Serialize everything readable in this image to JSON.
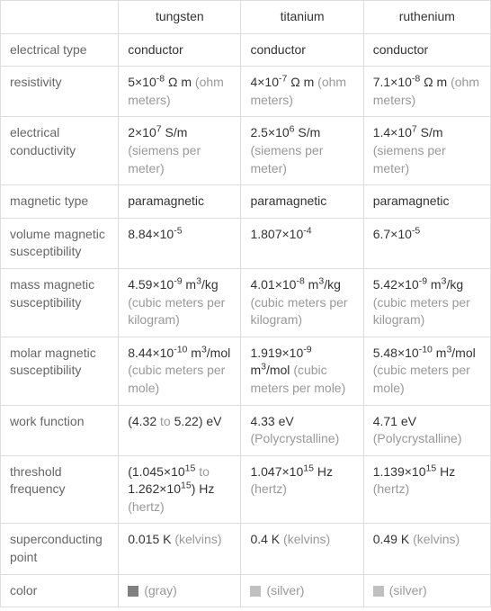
{
  "table": {
    "headers": [
      "",
      "tungsten",
      "titanium",
      "ruthenium"
    ],
    "rows": [
      {
        "label": "electrical type",
        "cells": [
          {
            "value": "conductor"
          },
          {
            "value": "conductor"
          },
          {
            "value": "conductor"
          }
        ]
      },
      {
        "label": "resistivity",
        "cells": [
          {
            "value_html": "5×10<sup>-8</sup> Ω m",
            "unit": "(ohm meters)"
          },
          {
            "value_html": "4×10<sup>-7</sup> Ω m",
            "unit": "(ohm meters)"
          },
          {
            "value_html": "7.1×10<sup>-8</sup> Ω m",
            "unit": "(ohm meters)"
          }
        ]
      },
      {
        "label": "electrical conductivity",
        "cells": [
          {
            "value_html": "2×10<sup>7</sup> S/m",
            "unit": "(siemens per meter)"
          },
          {
            "value_html": "2.5×10<sup>6</sup> S/m",
            "unit": "(siemens per meter)"
          },
          {
            "value_html": "1.4×10<sup>7</sup> S/m",
            "unit": "(siemens per meter)"
          }
        ]
      },
      {
        "label": "magnetic type",
        "cells": [
          {
            "value": "paramagnetic"
          },
          {
            "value": "paramagnetic"
          },
          {
            "value": "paramagnetic"
          }
        ]
      },
      {
        "label": "volume magnetic susceptibility",
        "cells": [
          {
            "value_html": "8.84×10<sup>-5</sup>"
          },
          {
            "value_html": "1.807×10<sup>-4</sup>"
          },
          {
            "value_html": "6.7×10<sup>-5</sup>"
          }
        ]
      },
      {
        "label": "mass magnetic susceptibility",
        "cells": [
          {
            "value_html": "4.59×10<sup>-9</sup> m<sup>3</sup>/kg",
            "unit": "(cubic meters per kilogram)"
          },
          {
            "value_html": "4.01×10<sup>-8</sup> m<sup>3</sup>/kg",
            "unit": "(cubic meters per kilogram)"
          },
          {
            "value_html": "5.42×10<sup>-9</sup> m<sup>3</sup>/kg",
            "unit": "(cubic meters per kilogram)"
          }
        ]
      },
      {
        "label": "molar magnetic susceptibility",
        "cells": [
          {
            "value_html": "8.44×10<sup>-10</sup> m<sup>3</sup>/mol",
            "unit": "(cubic meters per mole)"
          },
          {
            "value_html": "1.919×10<sup>-9</sup> m<sup>3</sup>/mol",
            "unit": "(cubic meters per mole)"
          },
          {
            "value_html": "5.48×10<sup>-10</sup> m<sup>3</sup>/mol",
            "unit": "(cubic meters per mole)"
          }
        ]
      },
      {
        "label": "work function",
        "cells": [
          {
            "value_html": "(4.32 <span class='unit-text'>to</span> 5.22) eV"
          },
          {
            "value": "4.33 eV",
            "unit": "(Polycrystalline)"
          },
          {
            "value": "4.71 eV",
            "unit": "(Polycrystalline)"
          }
        ]
      },
      {
        "label": "threshold frequency",
        "cells": [
          {
            "value_html": "(1.045×10<sup>15</sup> <span class='unit-text'>to</span> 1.262×10<sup>15</sup>) Hz",
            "unit": "(hertz)"
          },
          {
            "value_html": "1.047×10<sup>15</sup> Hz",
            "unit": "(hertz)"
          },
          {
            "value_html": "1.139×10<sup>15</sup> Hz",
            "unit": "(hertz)"
          }
        ]
      },
      {
        "label": "superconducting point",
        "cells": [
          {
            "value": "0.015 K",
            "unit": "(kelvins)"
          },
          {
            "value": "0.4 K",
            "unit": "(kelvins)"
          },
          {
            "value": "0.49 K",
            "unit": "(kelvins)"
          }
        ]
      },
      {
        "label": "color",
        "cells": [
          {
            "swatch": "#808080",
            "value_unit": "(gray)"
          },
          {
            "swatch": "#c0c0c0",
            "value_unit": "(silver)"
          },
          {
            "swatch": "#c0c0c0",
            "value_unit": "(silver)"
          }
        ]
      }
    ]
  },
  "styling": {
    "border_color": "#dddddd",
    "text_color": "#333333",
    "label_color": "#666666",
    "unit_color": "#999999",
    "background": "#ffffff",
    "column_widths": [
      "130px",
      "135px",
      "135px",
      "140px"
    ],
    "font_size": 14
  }
}
